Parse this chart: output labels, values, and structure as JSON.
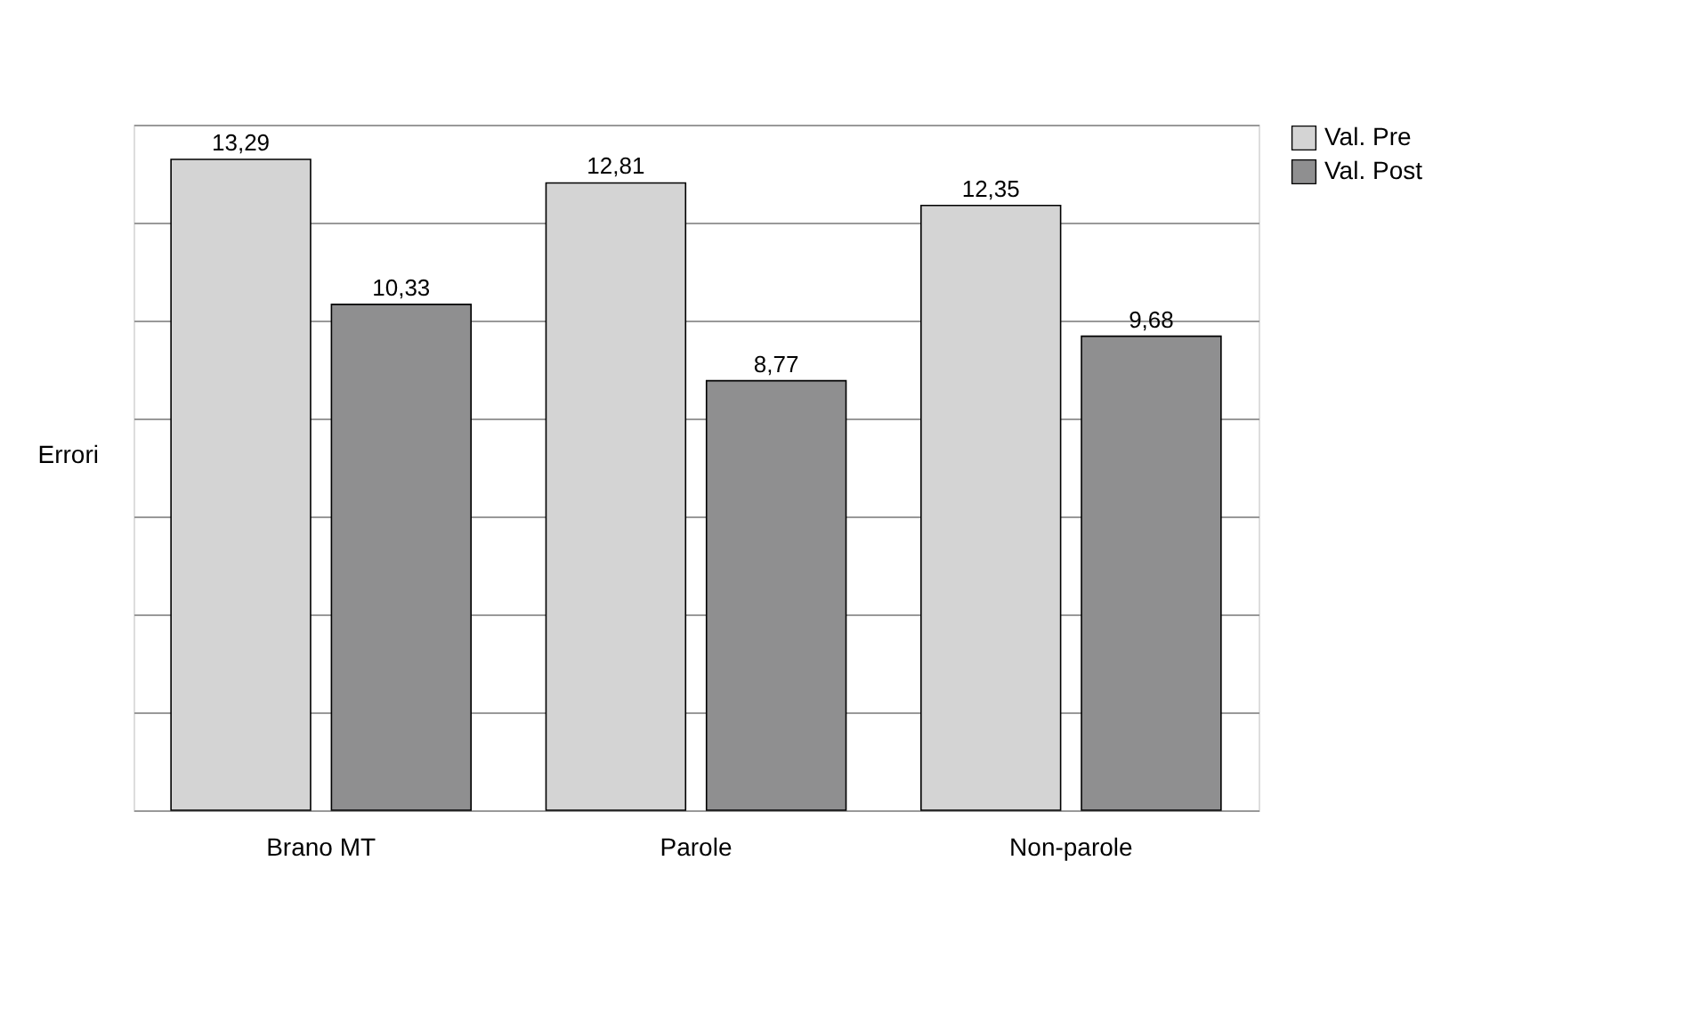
{
  "chart_data": {
    "type": "bar",
    "ylabel": "Errori",
    "categories": [
      "Brano MT",
      "Parole",
      "Non-parole"
    ],
    "series": [
      {
        "name": "Val. Pre",
        "color": "#d4d4d4",
        "values": [
          13.29,
          12.81,
          12.35
        ],
        "value_labels": [
          "13,29",
          "12,81",
          "12,35"
        ]
      },
      {
        "name": "Val. Post",
        "color": "#8f8f90",
        "values": [
          10.33,
          8.77,
          9.68
        ],
        "value_labels": [
          "10,33",
          "8,77",
          "9,68"
        ]
      }
    ],
    "ylim": [
      0,
      14
    ],
    "yticks": [
      {
        "value": 0,
        "label": null
      },
      {
        "value": 2,
        "label": null
      },
      {
        "value": 4,
        "label": null
      },
      {
        "value": 6,
        "label": null
      },
      {
        "value": 8,
        "label": null
      },
      {
        "value": 10,
        "label": null
      },
      {
        "value": 12,
        "label": null
      },
      {
        "value": 14,
        "label": null
      }
    ],
    "grid": "y",
    "legend": "right",
    "tick_labels": "x"
  }
}
